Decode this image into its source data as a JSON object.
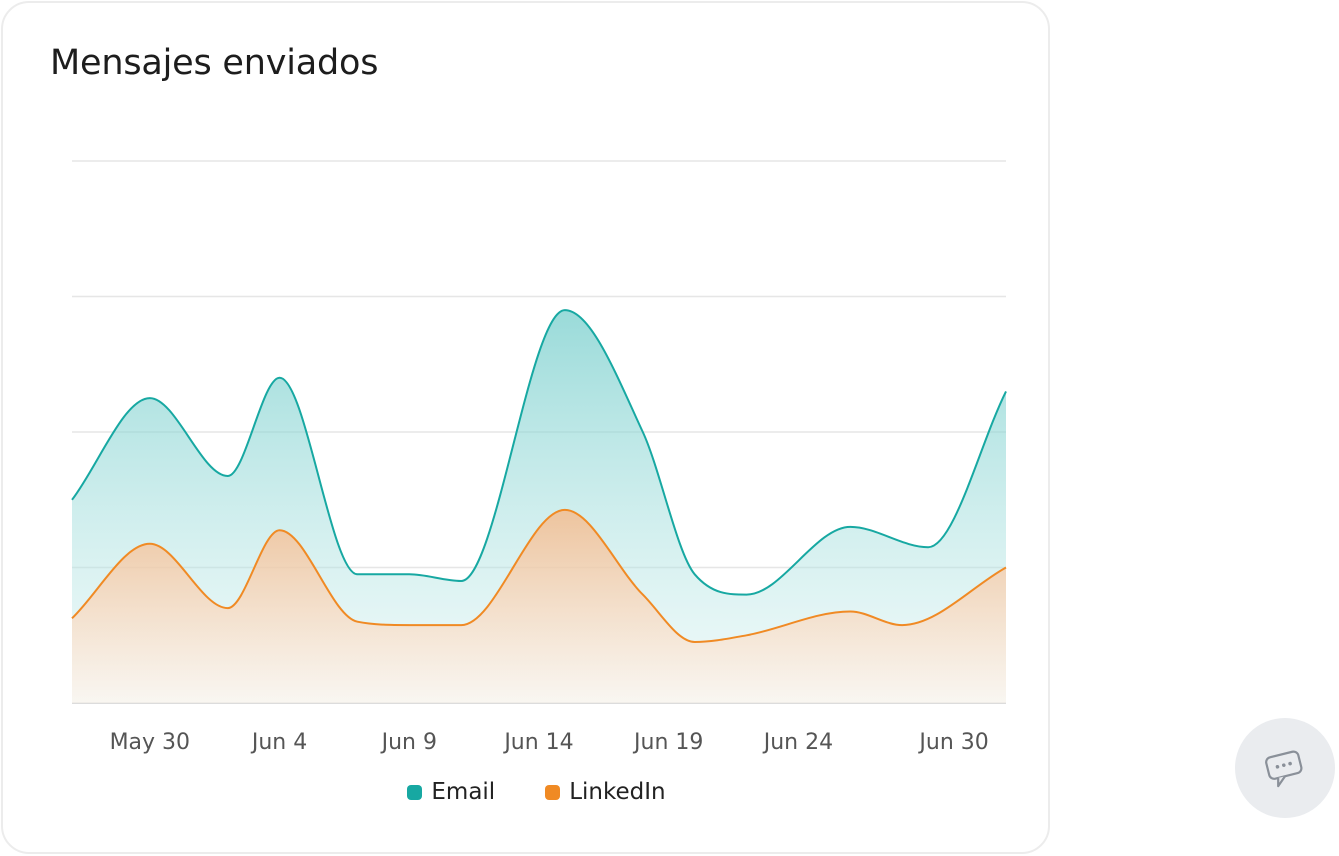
{
  "card": {
    "title": "Mensajes enviados"
  },
  "chart_data": {
    "type": "area",
    "title": "Mensajes enviados",
    "xlabel": "",
    "ylabel": "",
    "x_ticks": [
      "May 30",
      "Jun 4",
      "Jun 9",
      "Jun 14",
      "Jun 19",
      "Jun 24",
      "Jun 30"
    ],
    "ylim": [
      0,
      8
    ],
    "grid": true,
    "legend_placement": "bottom-center",
    "series": [
      {
        "name": "Email",
        "color": "#17a8a2",
        "points": [
          {
            "x": "May 27",
            "y": 3.0
          },
          {
            "x": "May 30",
            "y": 4.5
          },
          {
            "x": "Jun 2",
            "y": 3.35
          },
          {
            "x": "Jun 4",
            "y": 4.8
          },
          {
            "x": "Jun 7",
            "y": 1.9
          },
          {
            "x": "Jun 9",
            "y": 1.9
          },
          {
            "x": "Jun 11",
            "y": 1.8
          },
          {
            "x": "Jun 15",
            "y": 5.8
          },
          {
            "x": "Jun 18",
            "y": 4.0
          },
          {
            "x": "Jun 20",
            "y": 1.9
          },
          {
            "x": "Jun 22",
            "y": 1.6
          },
          {
            "x": "Jun 26",
            "y": 2.6
          },
          {
            "x": "Jun 29",
            "y": 2.3
          },
          {
            "x": "Jul 2",
            "y": 4.6
          }
        ]
      },
      {
        "name": "LinkedIn",
        "color": "#f08a24",
        "points": [
          {
            "x": "May 27",
            "y": 1.25
          },
          {
            "x": "May 30",
            "y": 2.35
          },
          {
            "x": "Jun 2",
            "y": 1.4
          },
          {
            "x": "Jun 4",
            "y": 2.55
          },
          {
            "x": "Jun 7",
            "y": 1.2
          },
          {
            "x": "Jun 9",
            "y": 1.15
          },
          {
            "x": "Jun 11",
            "y": 1.15
          },
          {
            "x": "Jun 15",
            "y": 2.85
          },
          {
            "x": "Jun 18",
            "y": 1.6
          },
          {
            "x": "Jun 20",
            "y": 0.9
          },
          {
            "x": "Jun 22",
            "y": 1.0
          },
          {
            "x": "Jun 26",
            "y": 1.35
          },
          {
            "x": "Jun 28",
            "y": 1.15
          },
          {
            "x": "Jul 2",
            "y": 2.0
          }
        ]
      }
    ]
  },
  "chat_button": {
    "icon": "chat-bubble-icon"
  }
}
